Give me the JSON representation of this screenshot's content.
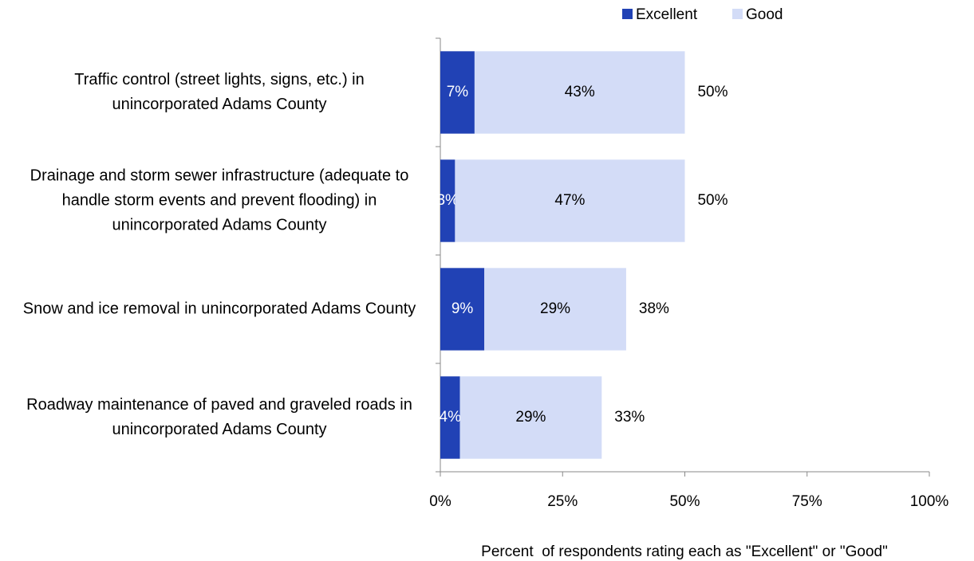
{
  "chart_data": {
    "type": "stacked-barh",
    "categories": [
      "Traffic control (street lights, signs, etc.) in unincorporated Adams County",
      "Drainage and storm sewer infrastructure (adequate to handle storm events and prevent flooding) in unincorporated Adams County",
      "Snow and ice removal in unincorporated Adams County",
      "Roadway maintenance of paved and graveled roads in unincorporated Adams County"
    ],
    "series": [
      {
        "name": "Excellent",
        "color": "#2142b5",
        "label_color": "#ffffff",
        "values": [
          7,
          3,
          9,
          4
        ],
        "value_labels": [
          "7%",
          "3%",
          "9%",
          "4%"
        ]
      },
      {
        "name": "Good",
        "color": "#d3dcf7",
        "label_color": "#000000",
        "values": [
          43,
          47,
          29,
          29
        ],
        "value_labels": [
          "43%",
          "47%",
          "29%",
          "29%"
        ]
      }
    ],
    "totals": {
      "values": [
        50,
        50,
        38,
        33
      ],
      "value_labels": [
        "50%",
        "50%",
        "38%",
        "33%"
      ]
    },
    "xlim": [
      0,
      100
    ],
    "xticks": [
      {
        "value": 0,
        "label": "0%"
      },
      {
        "value": 25,
        "label": "25%"
      },
      {
        "value": 50,
        "label": "50%"
      },
      {
        "value": 75,
        "label": "75%"
      },
      {
        "value": 100,
        "label": "100%"
      }
    ],
    "xlabel": "Percent  of respondents rating each as \"Excellent\" or \"Good\"",
    "legend": "top"
  }
}
